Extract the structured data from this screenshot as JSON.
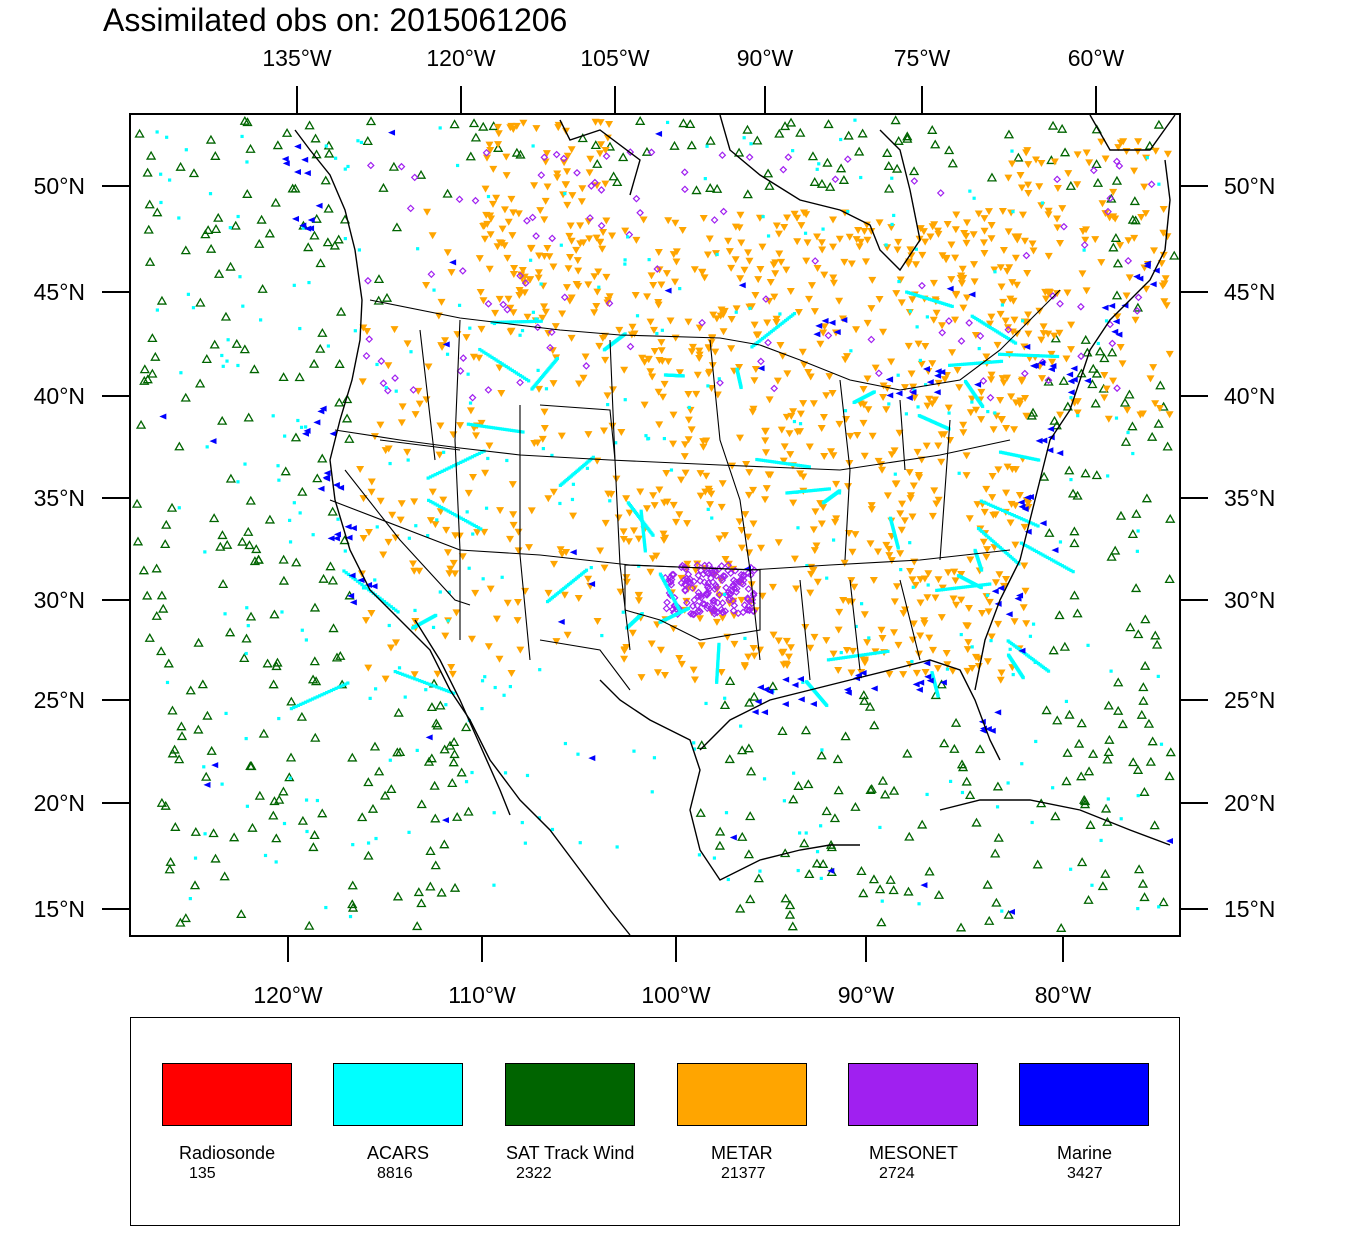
{
  "title": "Assimilated obs on: 2015061206",
  "top_axis": [
    "135°W",
    "120°W",
    "105°W",
    "90°W",
    "75°W",
    "60°W"
  ],
  "bottom_axis": [
    "120°W",
    "110°W",
    "100°W",
    "90°W",
    "80°W"
  ],
  "lat_axis": [
    "50°N",
    "45°N",
    "40°N",
    "35°N",
    "30°N",
    "25°N",
    "20°N",
    "15°N"
  ],
  "legend": [
    {
      "label": "Radiosonde",
      "count": "135",
      "color": "#ff0000"
    },
    {
      "label": "ACARS",
      "count": "8816",
      "color": "#00ffff"
    },
    {
      "label": "SAT Track Wind",
      "count": "2322",
      "color": "#006400"
    },
    {
      "label": "METAR",
      "count": "21377",
      "color": "#ffa500"
    },
    {
      "label": "MESONET",
      "count": "2724",
      "color": "#a020f0"
    },
    {
      "label": "Marine",
      "count": "3427",
      "color": "#0000ff"
    }
  ],
  "icons": {
    "sat": "triangle-icon",
    "metar": "down-triangle-icon",
    "mesonet": "diamond-icon",
    "marine": "left-triangle-icon",
    "acars": "square-icon"
  }
}
